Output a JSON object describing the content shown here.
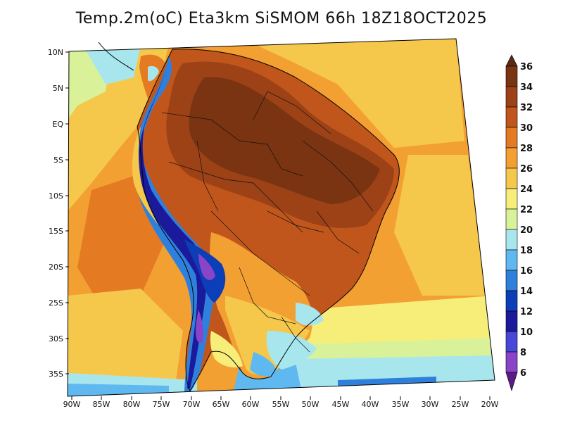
{
  "title": "Temp.2m(oC) Eta3km SiSMOM 66h 18Z18OCT2025",
  "map": {
    "lat_ticks": [
      "10N",
      "5N",
      "EQ",
      "5S",
      "10S",
      "15S",
      "20S",
      "25S",
      "30S",
      "35S"
    ],
    "lon_ticks": [
      "90W",
      "85W",
      "80W",
      "75W",
      "70W",
      "65W",
      "60W",
      "55W",
      "50W",
      "45W",
      "40W",
      "35W",
      "30W",
      "25W",
      "20W"
    ]
  },
  "colorbar": {
    "labels": [
      "36",
      "34",
      "32",
      "30",
      "28",
      "26",
      "24",
      "22",
      "20",
      "18",
      "16",
      "14",
      "12",
      "10",
      "8",
      "6"
    ],
    "colors": [
      "#5a2a10",
      "#7a3412",
      "#9c4216",
      "#c0561c",
      "#e47a22",
      "#f3a033",
      "#f5c84c",
      "#f7ee7a",
      "#d9f29a",
      "#a8e6ee",
      "#5fb8f0",
      "#2f80dc",
      "#0c3eb8",
      "#1a1a9a",
      "#4848d8",
      "#8a44c8",
      "#5a1a88"
    ]
  }
}
